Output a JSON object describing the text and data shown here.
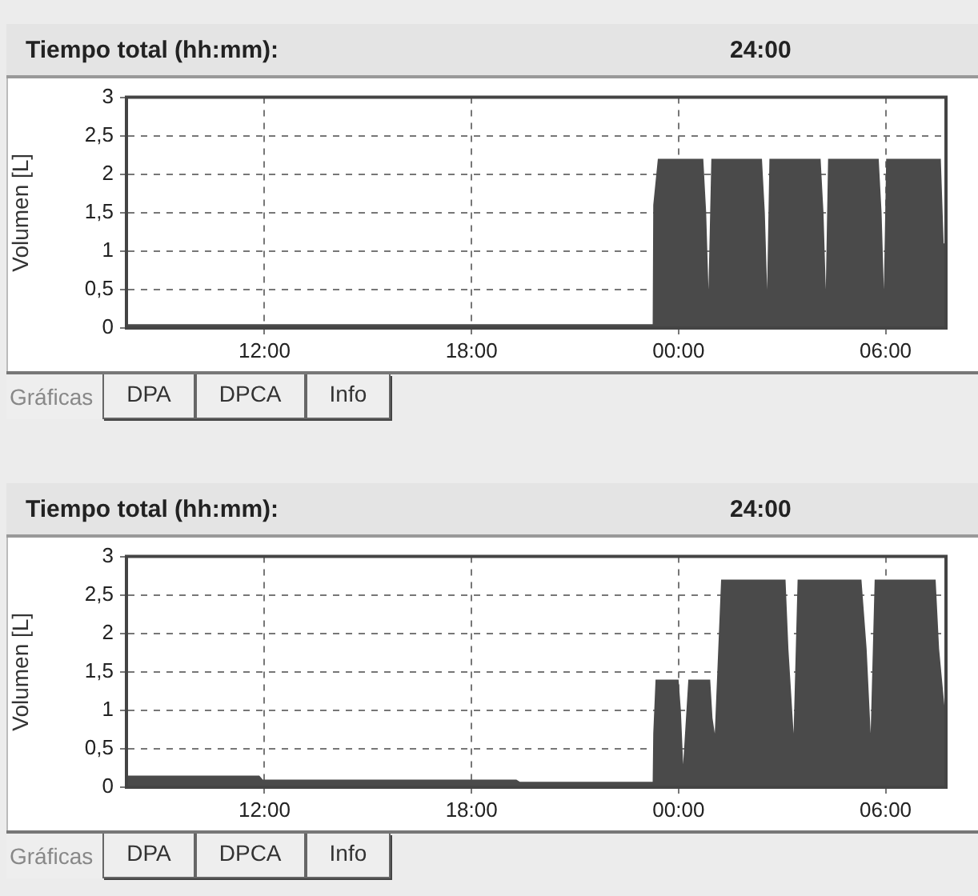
{
  "chart_data": [
    {
      "type": "area",
      "title": "Tiempo total (hh:mm):",
      "subtitle": "24:00",
      "ylabel": "Volumen [L]",
      "annotations": [
        "Gráficas",
        "DPA",
        "DPCA",
        "Info"
      ],
      "color": "#4a4a4a",
      "grid": true,
      "xlim": [
        "2000-01-01T08:00",
        "2000-01-02T07:45"
      ],
      "xticks": [
        {
          "value": "2000-01-01T12:00",
          "label": "12:00"
        },
        {
          "value": "2000-01-01T18:00",
          "label": "18:00"
        },
        {
          "value": "2000-01-02T00:00",
          "label": "00:00"
        },
        {
          "value": "2000-01-02T06:00",
          "label": "06:00"
        }
      ],
      "ylim": [
        0,
        3
      ],
      "yticks": [
        0,
        {
          "value": 0.5,
          "label": "0,5"
        },
        1,
        {
          "value": 1.5,
          "label": "1,5"
        },
        2,
        {
          "value": 2.5,
          "label": "2,5"
        },
        3
      ],
      "x": [
        "2000-01-01T08:00",
        "2000-01-01T23:15",
        "2000-01-01T23:16",
        "2000-01-01T23:24",
        "2000-01-02T00:43",
        "2000-01-02T00:48",
        "2000-01-02T00:52",
        "2000-01-02T00:57",
        "2000-01-02T02:25",
        "2000-01-02T02:30",
        "2000-01-02T02:34",
        "2000-01-02T02:38",
        "2000-01-02T04:07",
        "2000-01-02T04:12",
        "2000-01-02T04:16",
        "2000-01-02T04:20",
        "2000-01-02T05:48",
        "2000-01-02T05:53",
        "2000-01-02T05:57",
        "2000-01-02T06:01",
        "2000-01-02T07:36",
        "2000-01-02T07:41",
        "2000-01-02T07:45"
      ],
      "values": [
        0.05,
        0.05,
        1.6,
        2.2,
        2.2,
        1.5,
        0.5,
        2.2,
        2.2,
        1.5,
        0.5,
        2.2,
        2.2,
        1.5,
        0.5,
        2.2,
        2.2,
        1.5,
        0.5,
        2.2,
        2.2,
        1.1,
        1.1
      ]
    },
    {
      "type": "area",
      "title": "Tiempo total (hh:mm):",
      "subtitle": "24:00",
      "ylabel": "Volumen [L]",
      "annotations": [
        "Gráficas",
        "DPA",
        "DPCA",
        "Info"
      ],
      "color": "#4a4a4a",
      "grid": true,
      "xlim": [
        "2000-01-01T08:00",
        "2000-01-02T07:45"
      ],
      "xticks": [
        {
          "value": "2000-01-01T12:00",
          "label": "12:00"
        },
        {
          "value": "2000-01-01T18:00",
          "label": "18:00"
        },
        {
          "value": "2000-01-02T00:00",
          "label": "00:00"
        },
        {
          "value": "2000-01-02T06:00",
          "label": "06:00"
        }
      ],
      "ylim": [
        0,
        3
      ],
      "yticks": [
        0,
        {
          "value": 0.5,
          "label": "0,5"
        },
        1,
        {
          "value": 1.5,
          "label": "1,5"
        },
        2,
        {
          "value": 2.5,
          "label": "2,5"
        },
        3
      ],
      "x": [
        "2000-01-01T08:00",
        "2000-01-01T11:51",
        "2000-01-01T11:57",
        "2000-01-01T19:18",
        "2000-01-01T19:24",
        "2000-01-01T23:15",
        "2000-01-01T23:16",
        "2000-01-01T23:20",
        "2000-01-02T00:00",
        "2000-01-02T00:04",
        "2000-01-02T00:08",
        "2000-01-02T00:17",
        "2000-01-02T00:55",
        "2000-01-02T00:59",
        "2000-01-02T01:03",
        "2000-01-02T01:14",
        "2000-01-02T03:06",
        "2000-01-02T03:11",
        "2000-01-02T03:20",
        "2000-01-02T03:27",
        "2000-01-02T05:18",
        "2000-01-02T05:27",
        "2000-01-02T05:34",
        "2000-01-02T05:41",
        "2000-01-02T07:27",
        "2000-01-02T07:33",
        "2000-01-02T07:43",
        "2000-01-02T07:45"
      ],
      "values": [
        0.15,
        0.15,
        0.1,
        0.1,
        0.07,
        0.07,
        0.7,
        1.4,
        1.4,
        1.0,
        0.3,
        1.4,
        1.4,
        0.9,
        0.7,
        2.7,
        2.7,
        1.8,
        0.7,
        2.7,
        2.7,
        1.8,
        0.7,
        2.7,
        2.7,
        1.8,
        1.0,
        1.0
      ]
    }
  ]
}
